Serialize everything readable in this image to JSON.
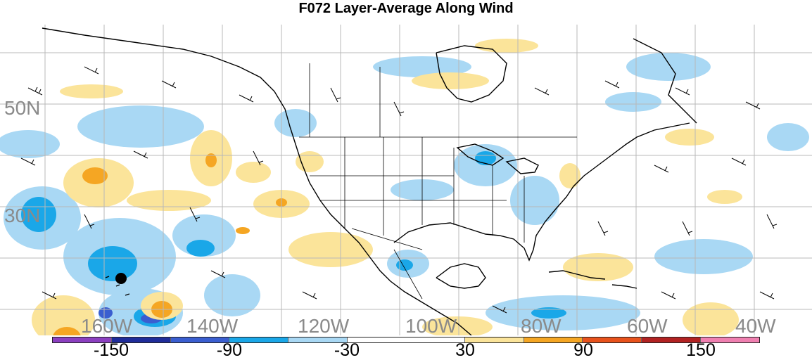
{
  "title": "F072 Layer-Average Along Wind",
  "lat_labels": [
    "50N",
    "30N"
  ],
  "lon_labels": [
    "160W",
    "140W",
    "120W",
    "100W",
    "80W",
    "60W",
    "40W"
  ],
  "colorbar": {
    "colors": [
      "#8b3fc0",
      "#1f2c9a",
      "#3a5ed0",
      "#1aa7e8",
      "#a9d8f4",
      "#ffffff",
      "#ffffff",
      "#fbe49a",
      "#f5a623",
      "#e8521c",
      "#b22222",
      "#ef7fb0"
    ],
    "labels": [
      "-150",
      "-90",
      "-30",
      "30",
      "90",
      "150"
    ]
  },
  "colors": {
    "land_line": "#000000",
    "grid_line": "#b8b8b8",
    "light_blue": "#a9d8f4",
    "blue": "#1aa7e8",
    "dark_blue": "#3a5ed0",
    "light_yellow": "#fbe49a",
    "orange": "#f5a623"
  }
}
